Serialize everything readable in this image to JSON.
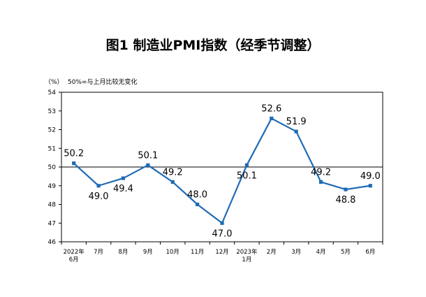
{
  "chart_data": {
    "type": "line",
    "title": "图1  制造业PMI指数（经季节调整）",
    "y_unit": "（%）",
    "note": "50%=与上月比较无变化",
    "ylim": [
      46,
      54
    ],
    "yticks": [
      46,
      47,
      48,
      49,
      50,
      51,
      52,
      53,
      54
    ],
    "reference_line": 50,
    "grid": false,
    "legend": "none",
    "x": [
      [
        "2022年",
        "6月"
      ],
      [
        "7月"
      ],
      [
        "8月"
      ],
      [
        "9月"
      ],
      [
        "10月"
      ],
      [
        "11月"
      ],
      [
        "12月"
      ],
      [
        "2023年",
        "1月"
      ],
      [
        "2月"
      ],
      [
        "3月"
      ],
      [
        "4月"
      ],
      [
        "5月"
      ],
      [
        "6月"
      ]
    ],
    "series": [
      {
        "values": [
          50.2,
          49.0,
          49.4,
          50.1,
          49.2,
          48.0,
          47.0,
          50.1,
          52.6,
          51.9,
          49.2,
          48.8,
          49.0
        ],
        "labels": [
          "50.2",
          "49.0",
          "49.4",
          "50.1",
          "49.2",
          "48.0",
          "47.0",
          "50.1",
          "52.6",
          "51.9",
          "49.2",
          "48.8",
          "49.0"
        ],
        "color": "#1f6bb5"
      }
    ]
  }
}
